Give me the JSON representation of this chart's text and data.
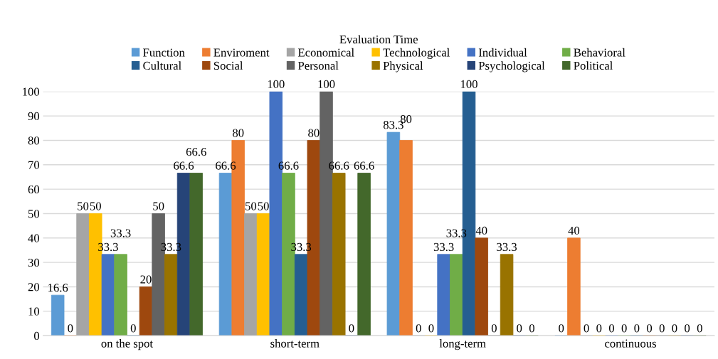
{
  "chart_data": {
    "type": "bar",
    "legend_title": "Evaluation Time",
    "categories": [
      "on the spot",
      "short-term",
      "long-term",
      "continuous"
    ],
    "series": [
      {
        "name": "Function",
        "color": "#5b9bd5",
        "values": [
          16.6,
          66.6,
          83.3,
          0
        ]
      },
      {
        "name": "Enviroment",
        "color": "#ed7d31",
        "values": [
          0,
          80,
          80,
          40
        ]
      },
      {
        "name": "Economical",
        "color": "#a5a5a5",
        "values": [
          50,
          50,
          0,
          0
        ]
      },
      {
        "name": "Technological",
        "color": "#ffc000",
        "values": [
          50,
          50,
          0,
          0
        ]
      },
      {
        "name": "Individual",
        "color": "#4472c4",
        "values": [
          33.3,
          100,
          33.3,
          0
        ]
      },
      {
        "name": "Behavioral",
        "color": "#70ad47",
        "values": [
          33.3,
          66.6,
          33.3,
          0
        ]
      },
      {
        "name": "Cultural",
        "color": "#255e91",
        "values": [
          0,
          33.3,
          100,
          0
        ]
      },
      {
        "name": "Social",
        "color": "#9e480e",
        "values": [
          20,
          80,
          40,
          0
        ]
      },
      {
        "name": "Personal",
        "color": "#636363",
        "values": [
          50,
          100,
          0,
          0
        ]
      },
      {
        "name": "Physical",
        "color": "#997300",
        "values": [
          33.3,
          66.6,
          33.3,
          0
        ]
      },
      {
        "name": "Psychological",
        "color": "#264478",
        "values": [
          66.6,
          0,
          0,
          0
        ]
      },
      {
        "name": "Political",
        "color": "#43682b",
        "values": [
          66.6,
          66.6,
          0,
          0
        ]
      }
    ],
    "ylim": [
      0,
      100
    ],
    "yticks": [
      0,
      10,
      20,
      30,
      40,
      50,
      60,
      70,
      80,
      90,
      100
    ],
    "grid": "y",
    "legend": "top",
    "data_labels": true
  }
}
